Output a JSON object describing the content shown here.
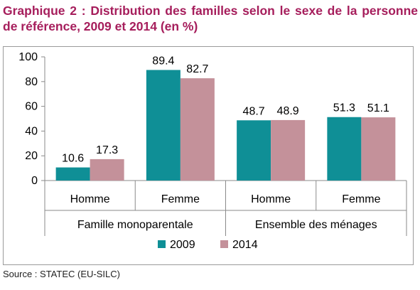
{
  "title": "Graphique 2 : Distribution des familles selon le sexe de la personne de référence, 2009 et 2014 (en %)",
  "source": "Source : STATEC (EU-SILC)",
  "colors": {
    "title": "#a61e5c",
    "series_2009": "#0f8f96",
    "series_2014": "#c4919a"
  },
  "chart_data": {
    "type": "bar",
    "categories": [
      "Homme",
      "Femme",
      "Homme",
      "Femme"
    ],
    "groups": [
      "Famille monoparentale",
      "Ensemble des ménages"
    ],
    "series": [
      {
        "name": "2009",
        "values": [
          10.6,
          89.4,
          48.7,
          51.3
        ]
      },
      {
        "name": "2014",
        "values": [
          17.3,
          82.7,
          48.9,
          51.1
        ]
      }
    ],
    "value_labels": [
      [
        "10.6",
        "89.4",
        "48.7",
        "51.3"
      ],
      [
        "17.3",
        "82.7",
        "48.9",
        "51.1"
      ]
    ],
    "yticks": [
      "0",
      "20",
      "40",
      "60",
      "80",
      "100"
    ],
    "ylim": [
      0,
      100
    ],
    "grid": false,
    "legend": "bottom"
  }
}
